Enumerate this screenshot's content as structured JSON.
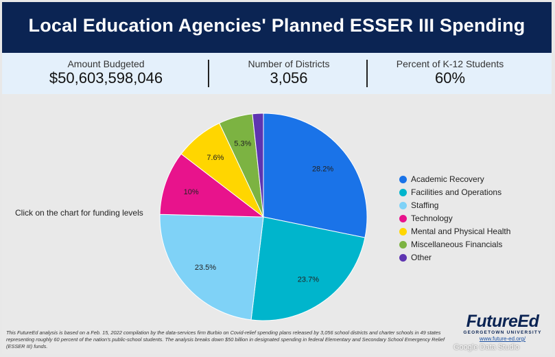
{
  "title": "Local Education Agencies' Planned ESSER III Spending",
  "stats": [
    {
      "label": "Amount Budgeted",
      "value": "$50,603,598,046"
    },
    {
      "label": "Number of Districts",
      "value": "3,056"
    },
    {
      "label": "Percent of K-12 Students",
      "value": "60%"
    }
  ],
  "hint": "Click on the chart for funding levels",
  "chart_data": {
    "type": "pie",
    "title": "Local Education Agencies' Planned ESSER III Spending",
    "slices": [
      {
        "name": "Academic Recovery",
        "value": 28.2,
        "label": "28.2%",
        "color": "#1a73e8"
      },
      {
        "name": "Facilities and Operations",
        "value": 23.7,
        "label": "23.7%",
        "color": "#00b5cc"
      },
      {
        "name": "Staffing",
        "value": 23.5,
        "label": "23.5%",
        "color": "#7fd2f7"
      },
      {
        "name": "Technology",
        "value": 10.0,
        "label": "10%",
        "color": "#e8138c"
      },
      {
        "name": "Mental and Physical Health",
        "value": 7.6,
        "label": "7.6%",
        "color": "#ffd600"
      },
      {
        "name": "Miscellaneous Financials",
        "value": 5.3,
        "label": "5.3%",
        "color": "#7cb342"
      },
      {
        "name": "Other",
        "value": 1.7,
        "label": "",
        "color": "#5e35b1"
      }
    ],
    "legend_position": "right"
  },
  "footnote": "This FutureEd analysis is based on a Feb. 15, 2022 compilation by the data-services firm Burbio on Covid-relief spending plans released by 3,056 school districts and charter schools in 49 states representing roughly 60 percent of the nation's public-school students. The analysis breaks down $50 billion in designated spending in federal Elementary and Secondary School Emergency Relief (ESSER III) funds.",
  "logo": {
    "brand": "FutureEd",
    "subtitle": "GEORGETOWN UNIVERSITY",
    "url": "www.future-ed.org/"
  },
  "watermark": "Google Data Studio"
}
